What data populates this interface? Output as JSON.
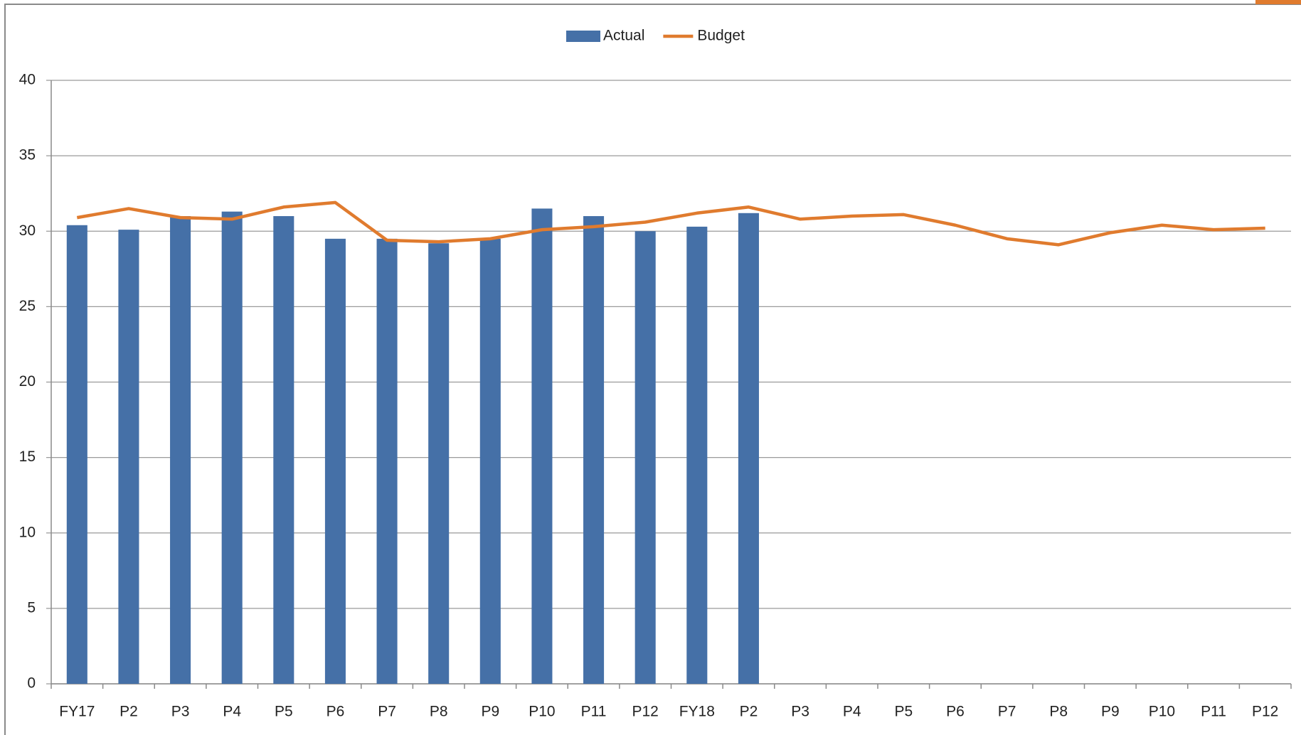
{
  "chart_data": {
    "type": "combo",
    "categories": [
      "FY17",
      "P2",
      "P3",
      "P4",
      "P5",
      "P6",
      "P7",
      "P8",
      "P9",
      "P10",
      "P11",
      "P12",
      "FY18",
      "P2",
      "P3",
      "P4",
      "P5",
      "P6",
      "P7",
      "P8",
      "P9",
      "P10",
      "P11",
      "P12"
    ],
    "series": [
      {
        "name": "Actual",
        "type": "bar",
        "color": "#4570a7",
        "values": [
          30.4,
          30.1,
          31.0,
          31.3,
          31.0,
          29.5,
          29.5,
          29.2,
          29.5,
          31.5,
          31.0,
          30.0,
          30.3,
          31.2,
          null,
          null,
          null,
          null,
          null,
          null,
          null,
          null,
          null,
          null
        ]
      },
      {
        "name": "Budget",
        "type": "line",
        "color": "#e07b2e",
        "values": [
          30.9,
          31.5,
          30.9,
          30.8,
          31.6,
          31.9,
          29.4,
          29.3,
          29.5,
          30.1,
          30.3,
          30.6,
          31.2,
          31.6,
          30.8,
          31.0,
          31.1,
          30.4,
          29.5,
          29.1,
          29.9,
          30.4,
          30.1,
          30.2
        ]
      }
    ],
    "ylim": [
      0,
      40
    ],
    "yticks": [
      0,
      5,
      10,
      15,
      20,
      25,
      30,
      35,
      40
    ],
    "grid": true,
    "legend": "top"
  }
}
